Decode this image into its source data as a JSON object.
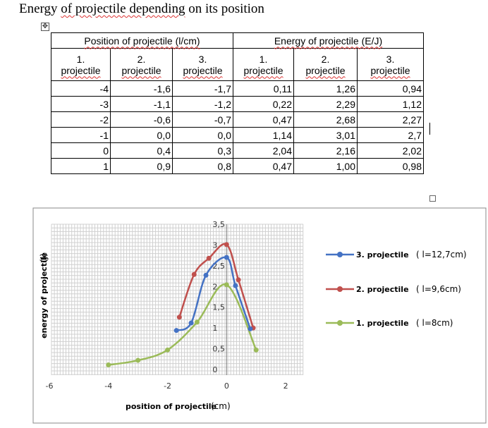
{
  "document": {
    "title_part1": "Energy ",
    "title_part2": "of projectile depending",
    "title_part3": " on its position"
  },
  "table": {
    "group_headers": [
      "Position of projectile (l/cm)",
      "Energy of projectile (E/J)"
    ],
    "sub_headers_top": [
      "1.",
      "2.",
      "3.",
      "1.",
      "2.",
      "3."
    ],
    "sub_headers_bottom": [
      "projectile",
      "projectile",
      "projectile",
      "projectile",
      "projectile",
      "projectile"
    ],
    "rows": [
      [
        "-4",
        "-1,6",
        "-1,7",
        "0,11",
        "1,26",
        "0,94"
      ],
      [
        "-3",
        "-1,1",
        "-1,2",
        "0,22",
        "2,29",
        "1,12"
      ],
      [
        "-2",
        "-0,6",
        "-0,7",
        "0,47",
        "2,68",
        "2,27"
      ],
      [
        "-1",
        "0,0",
        "0,0",
        "1,14",
        "3,01",
        "2,7"
      ],
      [
        "0",
        "0,4",
        "0,3",
        "2,04",
        "2,16",
        "2,02"
      ],
      [
        "1",
        "0,9",
        "0,8",
        "0,47",
        "1,00",
        "0,98"
      ]
    ]
  },
  "chart_data": {
    "type": "scatter",
    "xlabel": "position of projectile",
    "xlabel_unit": "(cm)",
    "ylabel": "energy of projectile",
    "ylabel_unit": "(J)",
    "xlim": [
      -6,
      3
    ],
    "ylim": [
      0,
      3.5
    ],
    "x_ticks": [
      -6,
      -4,
      -2,
      0,
      2
    ],
    "x_tick_labels": [
      "-6",
      "-4",
      "-2",
      "0",
      "2"
    ],
    "y_ticks": [
      0,
      0.5,
      1,
      1.5,
      2,
      2.5,
      3,
      3.5
    ],
    "y_tick_labels": [
      "0",
      "0,5",
      "1",
      "1,5",
      "2",
      "2,5",
      "3",
      "3,5"
    ],
    "grid": true,
    "legend_position": "right",
    "series": [
      {
        "name": "3. projectile",
        "legend_note": "( l=12,7cm)",
        "color": "#4472c4",
        "points": [
          [
            -1.7,
            0.94
          ],
          [
            -1.2,
            1.12
          ],
          [
            -0.7,
            2.27
          ],
          [
            0.0,
            2.7
          ],
          [
            0.3,
            2.02
          ],
          [
            0.8,
            0.98
          ]
        ]
      },
      {
        "name": "2. projectile",
        "legend_note": "( l=9,6cm)",
        "color": "#c0504d",
        "points": [
          [
            -1.6,
            1.26
          ],
          [
            -1.1,
            2.29
          ],
          [
            -0.6,
            2.68
          ],
          [
            0.0,
            3.01
          ],
          [
            0.4,
            2.16
          ],
          [
            0.9,
            1.0
          ]
        ]
      },
      {
        "name": "1. projectile",
        "legend_note": "( l=8cm)",
        "color": "#9bbb59",
        "points": [
          [
            -4,
            0.11
          ],
          [
            -3,
            0.22
          ],
          [
            -2,
            0.47
          ],
          [
            -1,
            1.14
          ],
          [
            0,
            2.04
          ],
          [
            1,
            0.47
          ]
        ]
      }
    ]
  }
}
